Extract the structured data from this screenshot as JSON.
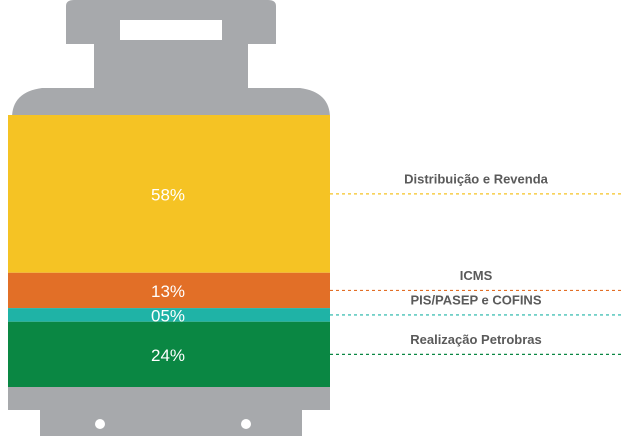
{
  "chart_data": {
    "type": "bar",
    "stacked": true,
    "categories": [
      "Distribuição e Revenda",
      "ICMS",
      "PIS/PASEP e COFINS",
      "Realização Petrobras"
    ],
    "values": [
      58,
      13,
      5,
      24
    ],
    "value_labels": [
      "58%",
      "13%",
      "05%",
      "24%"
    ],
    "colors": [
      "#f5c324",
      "#e26f27",
      "#1fb3a6",
      "#0a8743"
    ]
  }
}
